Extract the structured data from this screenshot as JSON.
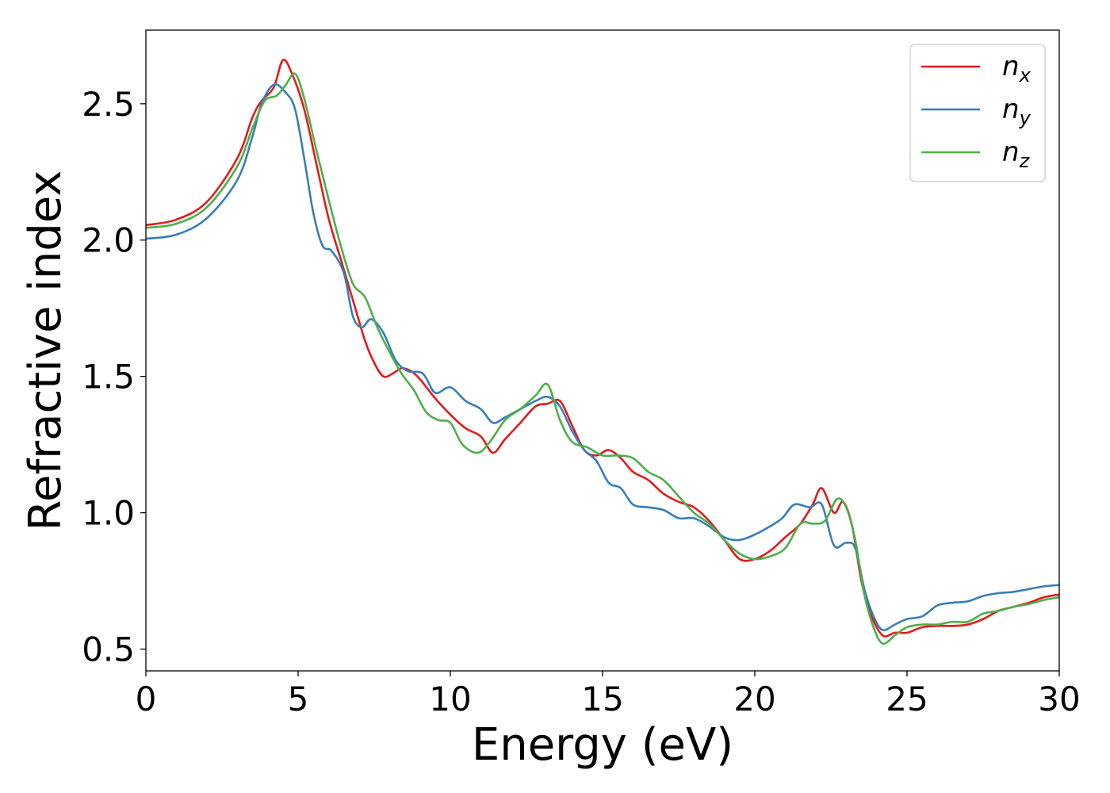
{
  "chart_data": {
    "type": "line",
    "title": "",
    "xlabel": "Energy (eV)",
    "ylabel": "Refractive index",
    "xlim": [
      0,
      30
    ],
    "ylim": [
      0.42,
      2.77
    ],
    "xticks": [
      0,
      5,
      10,
      15,
      20,
      25,
      30
    ],
    "xtick_labels": [
      "0",
      "5",
      "10",
      "15",
      "20",
      "25",
      "30"
    ],
    "yticks": [
      0.5,
      1.0,
      1.5,
      2.0,
      2.5
    ],
    "ytick_labels": [
      "0.5",
      "1.0",
      "1.5",
      "2.0",
      "2.5"
    ],
    "grid": false,
    "legend_position": "top-right",
    "series": [
      {
        "name": "n",
        "subscript": "x",
        "color": "#e41a1c",
        "points": [
          [
            0,
            2.055
          ],
          [
            1,
            2.075
          ],
          [
            2,
            2.14
          ],
          [
            3,
            2.3
          ],
          [
            3.5,
            2.45
          ],
          [
            3.8,
            2.51
          ],
          [
            4.2,
            2.56
          ],
          [
            4.5,
            2.66
          ],
          [
            4.8,
            2.61
          ],
          [
            5.2,
            2.48
          ],
          [
            5.6,
            2.28
          ],
          [
            6.0,
            2.08
          ],
          [
            6.4,
            1.93
          ],
          [
            6.8,
            1.78
          ],
          [
            7.2,
            1.63
          ],
          [
            7.5,
            1.55
          ],
          [
            7.8,
            1.5
          ],
          [
            8.1,
            1.51
          ],
          [
            8.4,
            1.53
          ],
          [
            8.7,
            1.52
          ],
          [
            9.0,
            1.49
          ],
          [
            9.5,
            1.42
          ],
          [
            10.0,
            1.36
          ],
          [
            10.5,
            1.31
          ],
          [
            11.0,
            1.28
          ],
          [
            11.4,
            1.22
          ],
          [
            11.8,
            1.27
          ],
          [
            12.3,
            1.33
          ],
          [
            12.8,
            1.39
          ],
          [
            13.2,
            1.4
          ],
          [
            13.6,
            1.41
          ],
          [
            14.0,
            1.32
          ],
          [
            14.4,
            1.23
          ],
          [
            14.8,
            1.21
          ],
          [
            15.2,
            1.23
          ],
          [
            15.6,
            1.2
          ],
          [
            16.0,
            1.15
          ],
          [
            16.5,
            1.12
          ],
          [
            17.0,
            1.07
          ],
          [
            17.5,
            1.04
          ],
          [
            18.0,
            1.02
          ],
          [
            18.5,
            0.97
          ],
          [
            19.0,
            0.9
          ],
          [
            19.5,
            0.83
          ],
          [
            20.0,
            0.83
          ],
          [
            20.5,
            0.86
          ],
          [
            21.0,
            0.91
          ],
          [
            21.5,
            0.96
          ],
          [
            21.9,
            1.03
          ],
          [
            22.2,
            1.09
          ],
          [
            22.6,
            1.0
          ],
          [
            22.9,
            1.04
          ],
          [
            23.2,
            0.95
          ],
          [
            23.5,
            0.75
          ],
          [
            23.8,
            0.63
          ],
          [
            24.2,
            0.55
          ],
          [
            24.6,
            0.56
          ],
          [
            25.0,
            0.56
          ],
          [
            25.5,
            0.58
          ],
          [
            26.0,
            0.585
          ],
          [
            26.5,
            0.585
          ],
          [
            27.0,
            0.59
          ],
          [
            27.5,
            0.61
          ],
          [
            28.0,
            0.64
          ],
          [
            28.5,
            0.655
          ],
          [
            29.0,
            0.67
          ],
          [
            29.5,
            0.69
          ],
          [
            30,
            0.7
          ]
        ]
      },
      {
        "name": "n",
        "subscript": "y",
        "color": "#377eb8",
        "points": [
          [
            0,
            2.005
          ],
          [
            1,
            2.02
          ],
          [
            2,
            2.08
          ],
          [
            3,
            2.22
          ],
          [
            3.5,
            2.38
          ],
          [
            3.8,
            2.5
          ],
          [
            4.2,
            2.57
          ],
          [
            4.6,
            2.54
          ],
          [
            4.9,
            2.48
          ],
          [
            5.2,
            2.3
          ],
          [
            5.5,
            2.1
          ],
          [
            5.8,
            1.98
          ],
          [
            6.1,
            1.96
          ],
          [
            6.5,
            1.88
          ],
          [
            6.8,
            1.72
          ],
          [
            7.1,
            1.68
          ],
          [
            7.4,
            1.71
          ],
          [
            7.8,
            1.66
          ],
          [
            8.2,
            1.56
          ],
          [
            8.6,
            1.52
          ],
          [
            9.1,
            1.51
          ],
          [
            9.5,
            1.44
          ],
          [
            10.0,
            1.46
          ],
          [
            10.5,
            1.41
          ],
          [
            11.0,
            1.38
          ],
          [
            11.4,
            1.33
          ],
          [
            11.8,
            1.35
          ],
          [
            12.3,
            1.38
          ],
          [
            12.8,
            1.41
          ],
          [
            13.2,
            1.425
          ],
          [
            13.6,
            1.39
          ],
          [
            14.0,
            1.3
          ],
          [
            14.4,
            1.23
          ],
          [
            14.8,
            1.19
          ],
          [
            15.2,
            1.11
          ],
          [
            15.6,
            1.09
          ],
          [
            16.0,
            1.03
          ],
          [
            16.5,
            1.02
          ],
          [
            17.0,
            1.01
          ],
          [
            17.5,
            0.98
          ],
          [
            18.0,
            0.98
          ],
          [
            18.5,
            0.95
          ],
          [
            19.0,
            0.91
          ],
          [
            19.5,
            0.9
          ],
          [
            20.0,
            0.92
          ],
          [
            20.5,
            0.95
          ],
          [
            20.9,
            0.98
          ],
          [
            21.3,
            1.03
          ],
          [
            21.8,
            1.02
          ],
          [
            22.2,
            1.03
          ],
          [
            22.6,
            0.88
          ],
          [
            23.0,
            0.89
          ],
          [
            23.3,
            0.87
          ],
          [
            23.6,
            0.72
          ],
          [
            23.9,
            0.62
          ],
          [
            24.2,
            0.57
          ],
          [
            24.6,
            0.59
          ],
          [
            25.0,
            0.61
          ],
          [
            25.5,
            0.62
          ],
          [
            26.0,
            0.66
          ],
          [
            26.5,
            0.67
          ],
          [
            27.0,
            0.675
          ],
          [
            27.5,
            0.695
          ],
          [
            28.0,
            0.705
          ],
          [
            28.5,
            0.71
          ],
          [
            29.0,
            0.72
          ],
          [
            29.5,
            0.73
          ],
          [
            30,
            0.735
          ]
        ]
      },
      {
        "name": "n",
        "subscript": "z",
        "color": "#4daf4a",
        "points": [
          [
            0,
            2.045
          ],
          [
            1,
            2.06
          ],
          [
            2,
            2.12
          ],
          [
            3,
            2.27
          ],
          [
            3.5,
            2.41
          ],
          [
            3.9,
            2.51
          ],
          [
            4.3,
            2.53
          ],
          [
            4.6,
            2.57
          ],
          [
            4.9,
            2.61
          ],
          [
            5.2,
            2.52
          ],
          [
            5.6,
            2.33
          ],
          [
            6.0,
            2.15
          ],
          [
            6.4,
            1.98
          ],
          [
            6.8,
            1.84
          ],
          [
            7.2,
            1.79
          ],
          [
            7.6,
            1.68
          ],
          [
            8.0,
            1.59
          ],
          [
            8.4,
            1.51
          ],
          [
            8.8,
            1.45
          ],
          [
            9.2,
            1.37
          ],
          [
            9.6,
            1.34
          ],
          [
            10.0,
            1.33
          ],
          [
            10.4,
            1.25
          ],
          [
            10.9,
            1.22
          ],
          [
            11.3,
            1.26
          ],
          [
            11.8,
            1.34
          ],
          [
            12.3,
            1.38
          ],
          [
            12.8,
            1.43
          ],
          [
            13.2,
            1.47
          ],
          [
            13.6,
            1.34
          ],
          [
            14.0,
            1.26
          ],
          [
            14.5,
            1.24
          ],
          [
            15.0,
            1.21
          ],
          [
            15.5,
            1.21
          ],
          [
            16.0,
            1.2
          ],
          [
            16.5,
            1.15
          ],
          [
            17.0,
            1.12
          ],
          [
            17.5,
            1.06
          ],
          [
            18.0,
            1.0
          ],
          [
            18.5,
            0.96
          ],
          [
            19.0,
            0.9
          ],
          [
            19.5,
            0.85
          ],
          [
            20.0,
            0.83
          ],
          [
            20.5,
            0.84
          ],
          [
            21.0,
            0.87
          ],
          [
            21.5,
            0.96
          ],
          [
            21.9,
            0.96
          ],
          [
            22.3,
            0.97
          ],
          [
            22.7,
            1.05
          ],
          [
            23.0,
            1.02
          ],
          [
            23.3,
            0.9
          ],
          [
            23.6,
            0.7
          ],
          [
            23.9,
            0.58
          ],
          [
            24.2,
            0.52
          ],
          [
            24.6,
            0.55
          ],
          [
            25.0,
            0.58
          ],
          [
            25.5,
            0.59
          ],
          [
            26.0,
            0.59
          ],
          [
            26.5,
            0.6
          ],
          [
            27.0,
            0.6
          ],
          [
            27.5,
            0.63
          ],
          [
            28.0,
            0.64
          ],
          [
            28.5,
            0.655
          ],
          [
            29.0,
            0.665
          ],
          [
            29.5,
            0.68
          ],
          [
            30,
            0.69
          ]
        ]
      }
    ]
  }
}
